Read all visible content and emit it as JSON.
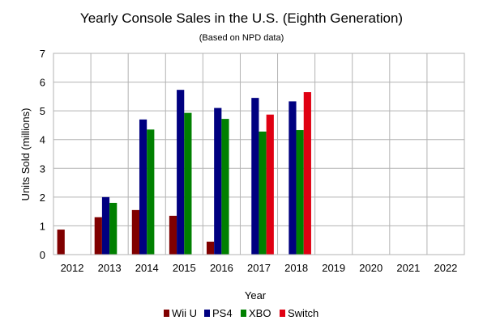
{
  "chart_data": {
    "type": "bar",
    "title": "Yearly Console Sales in the U.S. (Eighth Generation)",
    "subtitle": "(Based on NPD data)",
    "xlabel": "Year",
    "ylabel": "Units Sold (millions)",
    "ylim": [
      0,
      7
    ],
    "yticks": [
      "0",
      "1",
      "2",
      "3",
      "4",
      "5",
      "6",
      "7"
    ],
    "grid": true,
    "legend_position": "bottom",
    "categories": [
      "2012",
      "2013",
      "2014",
      "2015",
      "2016",
      "2017",
      "2018",
      "2019",
      "2020",
      "2021",
      "2022"
    ],
    "series": [
      {
        "name": "Wii U",
        "color": "#800000",
        "values": [
          0.87,
          1.3,
          1.55,
          1.35,
          0.45,
          null,
          null,
          null,
          null,
          null,
          null
        ]
      },
      {
        "name": "PS4",
        "color": "#000080",
        "values": [
          null,
          2.0,
          4.7,
          5.73,
          5.1,
          5.45,
          5.33,
          null,
          null,
          null,
          null
        ]
      },
      {
        "name": "XBO",
        "color": "#008000",
        "values": [
          null,
          1.8,
          4.35,
          4.93,
          4.72,
          4.28,
          4.33,
          null,
          null,
          null,
          null
        ]
      },
      {
        "name": "Switch",
        "color": "#e00012",
        "values": [
          null,
          null,
          null,
          null,
          null,
          4.87,
          5.65,
          null,
          null,
          null,
          null
        ]
      }
    ]
  }
}
